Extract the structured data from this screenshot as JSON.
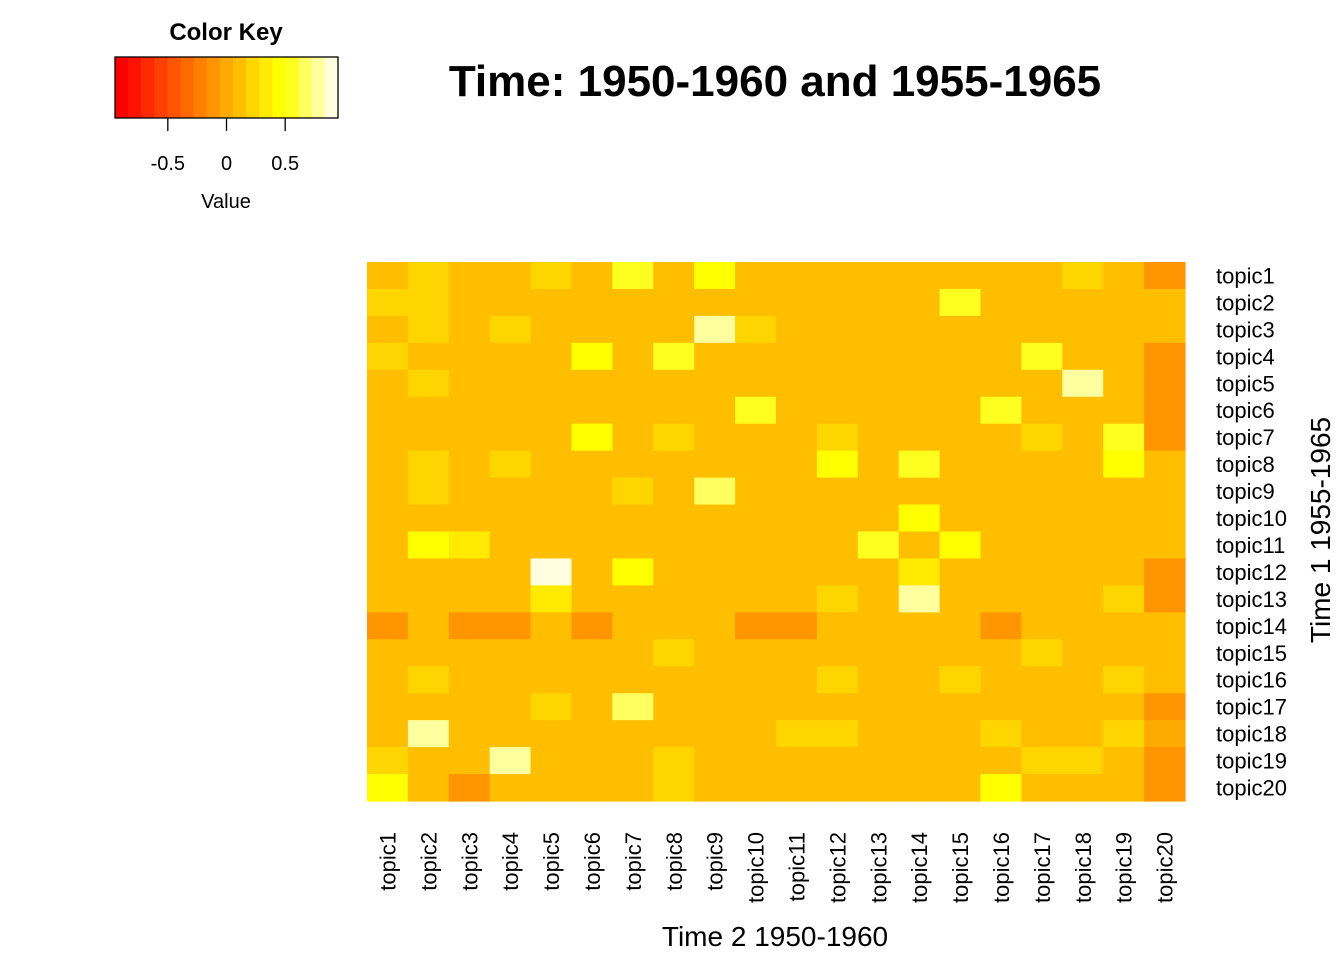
{
  "chart_data": {
    "type": "heatmap",
    "title": "Time: 1950-1960 and 1955-1965",
    "xlabel": "Time 2 1950-1960",
    "ylabel": "Time 1 1955-1965",
    "x_categories": [
      "topic1",
      "topic2",
      "topic3",
      "topic4",
      "topic5",
      "topic6",
      "topic7",
      "topic8",
      "topic9",
      "topic10",
      "topic11",
      "topic12",
      "topic13",
      "topic14",
      "topic15",
      "topic16",
      "topic17",
      "topic18",
      "topic19",
      "topic20"
    ],
    "y_categories": [
      "topic1",
      "topic2",
      "topic3",
      "topic4",
      "topic5",
      "topic6",
      "topic7",
      "topic8",
      "topic9",
      "topic10",
      "topic11",
      "topic12",
      "topic13",
      "topic14",
      "topic15",
      "topic16",
      "topic17",
      "topic18",
      "topic19",
      "topic20"
    ],
    "values": [
      [
        0.1,
        0.2,
        0.1,
        0.1,
        0.2,
        0.1,
        0.6,
        0.1,
        0.4,
        0.1,
        0.1,
        0.1,
        0.1,
        0.1,
        0.1,
        0.1,
        0.1,
        0.2,
        0.1,
        -0.1
      ],
      [
        0.2,
        0.2,
        0.1,
        0.1,
        0.1,
        0.1,
        0.1,
        0.1,
        0.1,
        0.1,
        0.1,
        0.1,
        0.1,
        0.1,
        0.6,
        0.1,
        0.1,
        0.1,
        0.1,
        0.1
      ],
      [
        0.1,
        0.2,
        0.1,
        0.2,
        0.1,
        0.1,
        0.1,
        0.1,
        0.8,
        0.2,
        0.1,
        0.1,
        0.1,
        0.1,
        0.1,
        0.1,
        0.1,
        0.1,
        0.1,
        0.1
      ],
      [
        0.2,
        0.1,
        0.1,
        0.1,
        0.1,
        0.4,
        0.1,
        0.6,
        0.1,
        0.1,
        0.1,
        0.1,
        0.1,
        0.1,
        0.1,
        0.1,
        0.6,
        0.1,
        0.1,
        -0.1
      ],
      [
        0.1,
        0.2,
        0.1,
        0.1,
        0.1,
        0.1,
        0.1,
        0.1,
        0.1,
        0.1,
        0.1,
        0.1,
        0.1,
        0.1,
        0.1,
        0.1,
        0.1,
        0.8,
        0.1,
        -0.1
      ],
      [
        0.1,
        0.1,
        0.1,
        0.1,
        0.1,
        0.1,
        0.1,
        0.1,
        0.1,
        0.6,
        0.1,
        0.1,
        0.1,
        0.1,
        0.1,
        0.6,
        0.1,
        0.1,
        0.1,
        -0.1
      ],
      [
        0.1,
        0.1,
        0.1,
        0.1,
        0.1,
        0.4,
        0.1,
        0.2,
        0.1,
        0.1,
        0.1,
        0.2,
        0.1,
        0.1,
        0.1,
        0.1,
        0.2,
        0.1,
        0.6,
        -0.1
      ],
      [
        0.1,
        0.2,
        0.1,
        0.2,
        0.1,
        0.1,
        0.1,
        0.1,
        0.1,
        0.1,
        0.1,
        0.4,
        0.1,
        0.6,
        0.1,
        0.1,
        0.1,
        0.1,
        0.4,
        0.1
      ],
      [
        0.1,
        0.2,
        0.1,
        0.1,
        0.1,
        0.1,
        0.2,
        0.1,
        0.7,
        0.1,
        0.1,
        0.1,
        0.1,
        0.1,
        0.1,
        0.1,
        0.1,
        0.1,
        0.1,
        0.1
      ],
      [
        0.1,
        0.1,
        0.1,
        0.1,
        0.1,
        0.1,
        0.1,
        0.1,
        0.1,
        0.1,
        0.1,
        0.1,
        0.1,
        0.4,
        0.1,
        0.1,
        0.1,
        0.1,
        0.1,
        0.1
      ],
      [
        0.1,
        0.4,
        0.3,
        0.1,
        0.1,
        0.1,
        0.1,
        0.1,
        0.1,
        0.1,
        0.1,
        0.1,
        0.6,
        0.1,
        0.4,
        0.1,
        0.1,
        0.1,
        0.1,
        0.1
      ],
      [
        0.1,
        0.1,
        0.1,
        0.1,
        0.9,
        0.1,
        0.4,
        0.1,
        0.1,
        0.1,
        0.1,
        0.1,
        0.1,
        0.3,
        0.1,
        0.1,
        0.1,
        0.1,
        0.1,
        -0.1
      ],
      [
        0.1,
        0.1,
        0.1,
        0.1,
        0.3,
        0.1,
        0.1,
        0.1,
        0.1,
        0.1,
        0.1,
        0.2,
        0.1,
        0.8,
        0.1,
        0.1,
        0.1,
        0.1,
        0.2,
        -0.1
      ],
      [
        -0.1,
        0.1,
        -0.1,
        -0.1,
        0.1,
        -0.1,
        0.1,
        0.1,
        0.1,
        -0.1,
        -0.1,
        0.1,
        0.1,
        0.1,
        0.1,
        -0.1,
        0.1,
        0.1,
        0.1,
        0.1
      ],
      [
        0.1,
        0.1,
        0.1,
        0.1,
        0.1,
        0.1,
        0.1,
        0.2,
        0.1,
        0.1,
        0.1,
        0.1,
        0.1,
        0.1,
        0.1,
        0.1,
        0.2,
        0.1,
        0.1,
        0.1
      ],
      [
        0.1,
        0.2,
        0.1,
        0.1,
        0.1,
        0.1,
        0.1,
        0.1,
        0.1,
        0.1,
        0.1,
        0.2,
        0.1,
        0.1,
        0.2,
        0.1,
        0.1,
        0.1,
        0.2,
        0.1
      ],
      [
        0.1,
        0.1,
        0.1,
        0.1,
        0.2,
        0.1,
        0.7,
        0.1,
        0.1,
        0.1,
        0.1,
        0.1,
        0.1,
        0.1,
        0.1,
        0.1,
        0.1,
        0.1,
        0.1,
        -0.1
      ],
      [
        0.1,
        0.8,
        0.1,
        0.1,
        0.1,
        0.1,
        0.1,
        0.1,
        0.1,
        0.1,
        0.2,
        0.2,
        0.1,
        0.1,
        0.1,
        0.2,
        0.1,
        0.1,
        0.2,
        0.0
      ],
      [
        0.2,
        0.1,
        0.1,
        0.8,
        0.1,
        0.1,
        0.1,
        0.2,
        0.1,
        0.1,
        0.1,
        0.1,
        0.1,
        0.1,
        0.1,
        0.1,
        0.2,
        0.2,
        0.1,
        -0.1
      ],
      [
        0.4,
        0.1,
        -0.1,
        0.1,
        0.1,
        0.1,
        0.1,
        0.2,
        0.1,
        0.1,
        0.1,
        0.1,
        0.1,
        0.1,
        0.1,
        0.4,
        0.1,
        0.1,
        0.1,
        -0.1
      ]
    ],
    "value_range": [
      -0.95,
      0.95
    ],
    "color_scale": [
      "#FF0000",
      "#FF1400",
      "#FF2B00",
      "#FF4000",
      "#FF5500",
      "#FF6A00",
      "#FF8000",
      "#FF9500",
      "#FFAA00",
      "#FFBF00",
      "#FFD500",
      "#FFEA00",
      "#FFFF00",
      "#FFFF1F",
      "#FFFF5F",
      "#FFFF9F",
      "#FFFFDF"
    ],
    "color_key": {
      "title": "Color Key",
      "xlabel": "Value",
      "ticks": [
        -0.5,
        0,
        0.5
      ],
      "tick_labels": [
        "-0.5",
        "0",
        "0.5"
      ]
    }
  }
}
